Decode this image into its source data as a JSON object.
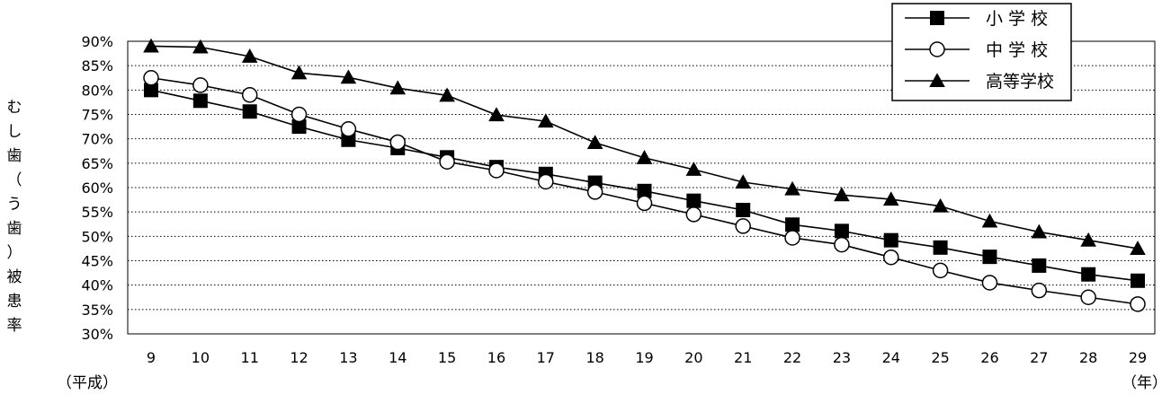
{
  "chart_data": {
    "type": "line",
    "ylabel": "むし歯（う歯）被患率",
    "x_prefix_label": "（平成）",
    "x_suffix_label": "（年）",
    "ylim": [
      30,
      90
    ],
    "y_tick_step": 5,
    "y_tick_suffix": "%",
    "grid": true,
    "legend_position": "top-right",
    "x": [
      "9",
      "10",
      "11",
      "12",
      "13",
      "14",
      "15",
      "16",
      "17",
      "18",
      "19",
      "20",
      "21",
      "22",
      "23",
      "24",
      "25",
      "26",
      "27",
      "28",
      "29"
    ],
    "series": [
      {
        "name": "小 学 校",
        "marker": "filled-square",
        "values": [
          80.0,
          77.8,
          75.6,
          72.5,
          69.8,
          68.1,
          66.2,
          64.2,
          62.8,
          61.0,
          59.3,
          57.3,
          55.4,
          52.4,
          51.1,
          49.2,
          47.7,
          45.8,
          44.0,
          42.2,
          40.9
        ]
      },
      {
        "name": "中 学 校",
        "marker": "open-circle",
        "values": [
          82.5,
          81.0,
          79.0,
          75.0,
          72.0,
          69.3,
          65.3,
          63.5,
          61.2,
          59.1,
          56.8,
          54.5,
          52.1,
          49.7,
          48.3,
          45.7,
          43.0,
          40.5,
          38.9,
          37.5,
          36.1
        ]
      },
      {
        "name": "高等学校",
        "marker": "filled-triangle",
        "values": [
          89.0,
          88.8,
          86.9,
          83.5,
          82.6,
          80.4,
          78.9,
          74.9,
          73.6,
          69.2,
          66.1,
          63.7,
          61.1,
          59.7,
          58.5,
          57.6,
          56.2,
          53.1,
          50.9,
          49.2,
          47.5
        ]
      }
    ]
  }
}
